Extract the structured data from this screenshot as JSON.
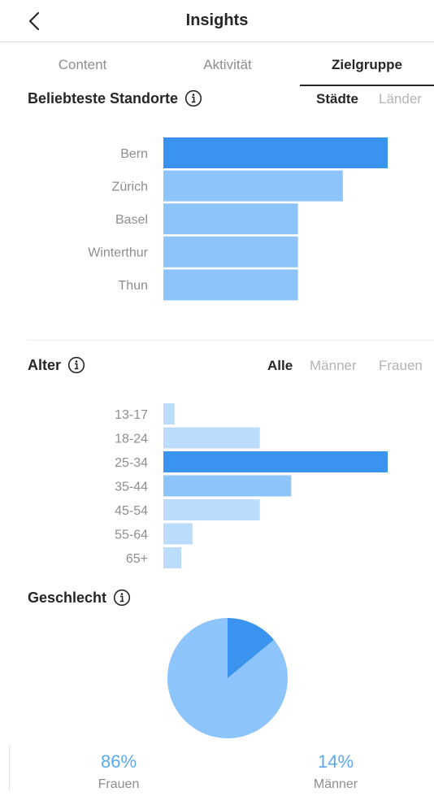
{
  "header": {
    "title": "Insights",
    "back_icon": "chevron-left-icon"
  },
  "tabs": [
    {
      "label": "Content",
      "active": false
    },
    {
      "label": "Aktivität",
      "active": false
    },
    {
      "label": "Zielgruppe",
      "active": true
    }
  ],
  "locations": {
    "title": "Beliebteste Standorte",
    "filters": [
      {
        "label": "Städte",
        "active": true
      },
      {
        "label": "Länder",
        "active": false
      }
    ]
  },
  "age": {
    "title": "Alter",
    "filters": [
      {
        "label": "Alle",
        "active": true
      },
      {
        "label": "Männer",
        "active": false
      },
      {
        "label": "Frauen",
        "active": false
      }
    ]
  },
  "gender": {
    "title": "Geschlecht",
    "female": {
      "percent": "86%",
      "label": "Frauen"
    },
    "male": {
      "percent": "14%",
      "label": "Männer"
    }
  },
  "colors": {
    "bar_dark": "#3a93ee",
    "bar_mid": "#8cc4fb",
    "bar_light": "#bcdcfc",
    "pie_female": "#8cc4fb",
    "pie_male": "#3a93ee",
    "pct_text": "#5aa9f0"
  },
  "chart_data": [
    {
      "type": "bar",
      "orientation": "horizontal",
      "categories": [
        "Bern",
        "Zürich",
        "Basel",
        "Winterthur",
        "Thun"
      ],
      "values": [
        100,
        80,
        60,
        60,
        60
      ]
    },
    {
      "type": "bar",
      "orientation": "horizontal",
      "categories": [
        "13-17",
        "18-24",
        "25-34",
        "35-44",
        "45-54",
        "55-64",
        "65+"
      ],
      "values": [
        5,
        43,
        100,
        57,
        43,
        13,
        8
      ]
    },
    {
      "type": "pie",
      "categories": [
        "Frauen",
        "Männer"
      ],
      "values": [
        86,
        14
      ]
    }
  ]
}
